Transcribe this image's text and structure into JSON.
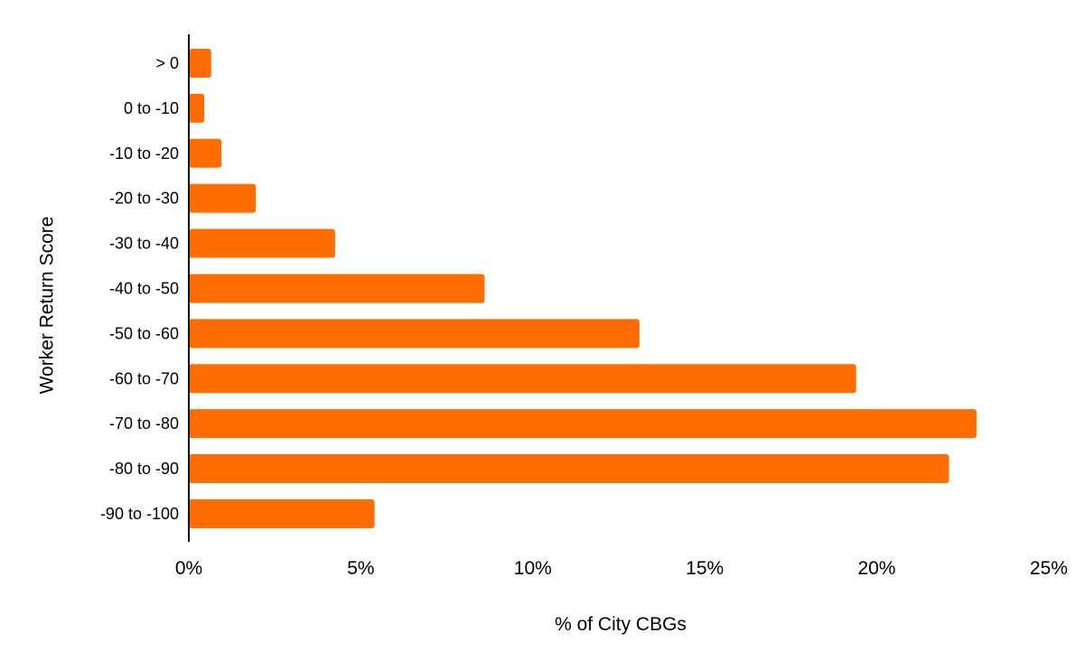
{
  "chart_data": {
    "type": "bar",
    "orientation": "horizontal",
    "categories": [
      "> 0",
      "0 to -10",
      "-10 to -20",
      "-20 to -30",
      "-30 to -40",
      "-40 to -50",
      "-50 to -60",
      "-60 to -70",
      "-70 to -80",
      "-80 to -90",
      "-90 to -100"
    ],
    "values": [
      0.65,
      0.45,
      0.95,
      1.95,
      4.25,
      8.6,
      13.1,
      19.4,
      22.9,
      22.1,
      5.4
    ],
    "xlabel": "% of City CBGs",
    "ylabel": "Worker Return Score",
    "xlim": [
      0,
      25
    ],
    "xticks": [
      0,
      5,
      10,
      15,
      20,
      25
    ],
    "xtick_labels": [
      "0%",
      "5%",
      "10%",
      "15%",
      "20%",
      "25%"
    ],
    "grid": false,
    "legend": "none",
    "bar_color": "#ff6d00"
  }
}
